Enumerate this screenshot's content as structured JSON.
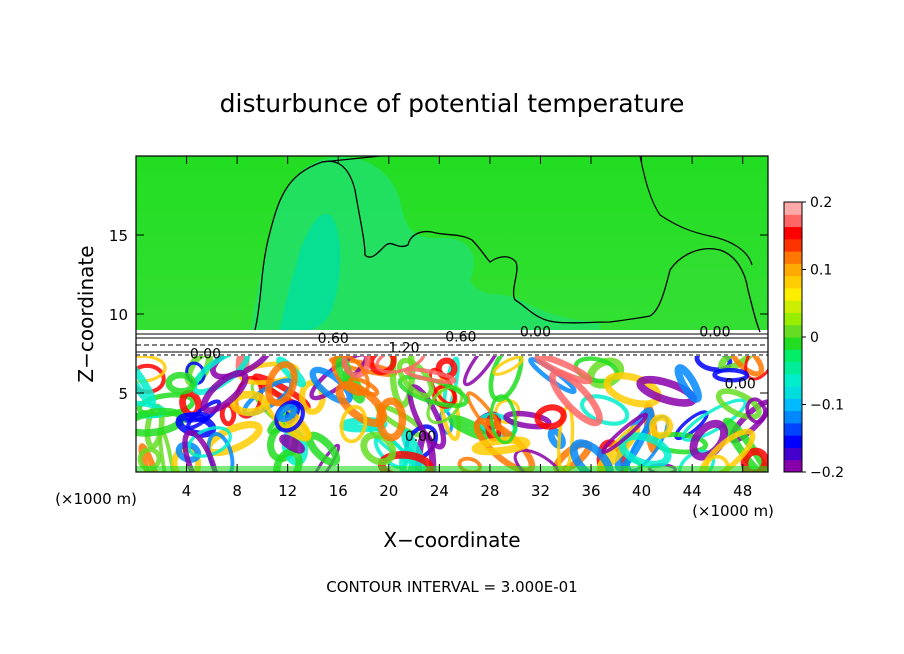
{
  "chart_data": {
    "type": "heatmap",
    "title": "disturbunce of potential temperature",
    "xlabel": "X−coordinate",
    "ylabel": "Z−coordinate",
    "x_unit_left": "(×1000 m)",
    "x_unit_right": "(×1000 m)",
    "xlim": [
      0,
      50
    ],
    "ylim": [
      0,
      20
    ],
    "x_ticks": [
      4,
      8,
      12,
      16,
      20,
      24,
      28,
      32,
      36,
      40,
      44,
      48
    ],
    "x_tick_labels": [
      "4",
      "8",
      "12",
      "16",
      "20",
      "24",
      "28",
      "32",
      "36",
      "40",
      "44",
      "48"
    ],
    "y_ticks": [
      5,
      10,
      15
    ],
    "y_tick_labels": [
      "5",
      "10",
      "15"
    ],
    "colorbar": {
      "range": [
        -0.2,
        0.2
      ],
      "tick_labels": [
        {
          "value": 0.2,
          "label": "0.2"
        },
        {
          "value": 0.1,
          "label": "0.1"
        },
        {
          "value": 0,
          "label": "0"
        },
        {
          "value": -0.1,
          "label": "−0.1"
        },
        {
          "value": -0.2,
          "label": "−0.2"
        }
      ],
      "colors": [
        "#8800aa",
        "#4400cc",
        "#0000ff",
        "#0044ff",
        "#0088ff",
        "#00bbff",
        "#00dddd",
        "#00eecc",
        "#00ee99",
        "#00ee66",
        "#22dd22",
        "#66dd22",
        "#99ee00",
        "#ccee00",
        "#ffee00",
        "#ffcc00",
        "#ffaa00",
        "#ff7700",
        "#ff3300",
        "#ff0000",
        "#ff6666",
        "#ffaaaa"
      ]
    },
    "contour_labels": [
      {
        "text": "0.00",
        "x": 5.5,
        "z": 7.3
      },
      {
        "text": "0.60",
        "x": 15.6,
        "z": 8.3
      },
      {
        "text": "1.20",
        "x": 21.2,
        "z": 7.7
      },
      {
        "text": "0.60",
        "x": 25.7,
        "z": 8.4
      },
      {
        "text": "0.00",
        "x": 31.6,
        "z": 8.7
      },
      {
        "text": "0.00",
        "x": 45.8,
        "z": 8.7
      },
      {
        "text": "0.00",
        "x": 47.8,
        "z": 5.4
      },
      {
        "text": "0.00",
        "x": 22.5,
        "z": 2.1
      }
    ],
    "contour_interval_text": "CONTOUR INTERVAL = 3.000E-01",
    "grid": false,
    "legend": "colorbar-right"
  }
}
